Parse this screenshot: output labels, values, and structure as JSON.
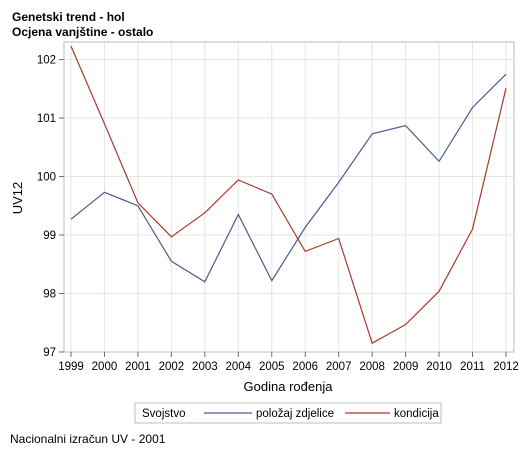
{
  "chart_data": {
    "type": "line",
    "title": "Genetski trend - hol",
    "subtitle": "Ocjena vanjštine - ostalo",
    "xlabel": "Godina rođenja",
    "ylabel": "UV12",
    "x": [
      1999,
      2000,
      2001,
      2002,
      2003,
      2004,
      2005,
      2006,
      2007,
      2008,
      2009,
      2010,
      2011,
      2012
    ],
    "xlim": [
      1999,
      2012
    ],
    "ylim": [
      97,
      102.3
    ],
    "yticks": [
      97,
      98,
      99,
      100,
      101,
      102
    ],
    "grid": true,
    "legend_title": "Svojstvo",
    "legend_position": "bottom",
    "series": [
      {
        "name": "položaj zdjelice",
        "color": "#4a5b8e",
        "values": [
          99.27,
          99.73,
          99.5,
          98.55,
          98.2,
          99.35,
          98.22,
          99.13,
          99.9,
          100.73,
          100.87,
          100.26,
          101.18,
          101.75
        ]
      },
      {
        "name": "kondicija",
        "color": "#a83a2c",
        "values": [
          102.23,
          100.9,
          99.55,
          98.97,
          99.38,
          99.94,
          99.7,
          98.72,
          98.94,
          97.15,
          97.47,
          98.04,
          99.1,
          101.51
        ]
      }
    ]
  },
  "footnote": "Nacionalni izračun UV - 2001"
}
